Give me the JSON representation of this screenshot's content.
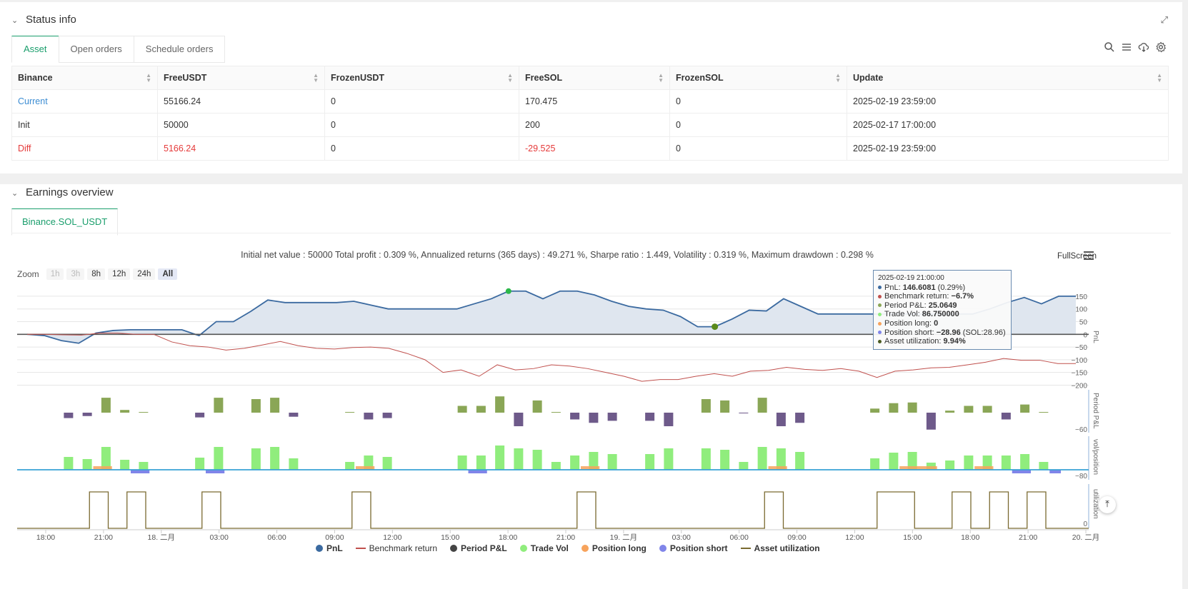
{
  "status": {
    "title": "Status info",
    "tabs": [
      "Asset",
      "Open orders",
      "Schedule orders"
    ],
    "headers": [
      "Binance",
      "FreeUSDT",
      "FrozenUSDT",
      "FreeSOL",
      "FrozenSOL",
      "Update"
    ],
    "rows": [
      [
        "Current",
        "55166.24",
        "0",
        "170.475",
        "0",
        "2025-02-19 23:59:00"
      ],
      [
        "Init",
        "50000",
        "0",
        "200",
        "0",
        "2025-02-17 17:00:00"
      ],
      [
        "Diff",
        "5166.24",
        "0",
        "-29.525",
        "0",
        "2025-02-19 23:59:00"
      ]
    ]
  },
  "earnings": {
    "title": "Earnings overview",
    "tab": "Binance.SOL_USDT",
    "summary": "Initial net value : 50000 Total profit : 0.309 %, Annualized returns (365 days) : 49.271 %, Sharpe ratio : 1.449, Volatility : 0.319 %, Maximum drawdown : 0.298 %",
    "fullscreen": "FullScreen",
    "zoom_label": "Zoom",
    "zoom_buttons": [
      "1h",
      "3h",
      "8h",
      "12h",
      "24h",
      "All"
    ]
  },
  "tooltip": {
    "time": "2025-02-19 21:00:00",
    "pnl_label": "PnL:",
    "pnl_value": "146.6081",
    "pnl_extra": "(0.29%)",
    "bench_label": "Benchmark return:",
    "bench_value": "−6.7%",
    "period_label": "Period P&L:",
    "period_value": "25.0649",
    "vol_label": "Trade Vol:",
    "vol_value": "86.750000",
    "long_label": "Position long:",
    "long_value": "0",
    "short_label": "Position short:",
    "short_value": "−28.96",
    "short_extra": "(SOL:28.96)",
    "util_label": "Asset utilization:",
    "util_value": "9.94%"
  },
  "chart_data": {
    "type": "line",
    "x_ticks": [
      "18:00",
      "21:00",
      "18. 二月",
      "03:00",
      "06:00",
      "09:00",
      "12:00",
      "15:00",
      "18:00",
      "21:00",
      "19. 二月",
      "03:00",
      "06:00",
      "09:00",
      "12:00",
      "15:00",
      "18:00",
      "21:00",
      "20. 二月"
    ],
    "pnl_axis": {
      "label": "PnL",
      "ticks": [
        "150",
        "100",
        "50",
        "0",
        "−50",
        "−100",
        "−150",
        "−200"
      ],
      "ylim": [
        -210,
        175
      ]
    },
    "period_axis": {
      "label": "Period P&L",
      "ticks": [
        "−60"
      ]
    },
    "vol_axis": {
      "label": "vol/position",
      "ticks": [
        "−80"
      ]
    },
    "util_axis": {
      "label": "utilization",
      "ticks": [
        "0"
      ]
    },
    "pnl": [
      0,
      -5,
      -25,
      -35,
      5,
      15,
      18,
      18,
      18,
      18,
      -5,
      50,
      50,
      90,
      135,
      125,
      125,
      125,
      125,
      130,
      115,
      100,
      100,
      100,
      100,
      100,
      120,
      140,
      170,
      170,
      140,
      170,
      170,
      155,
      130,
      110,
      100,
      95,
      70,
      30,
      30,
      60,
      95,
      92,
      140,
      110,
      80,
      80,
      80,
      80,
      80,
      80,
      80,
      80,
      80,
      80,
      100,
      125,
      145,
      120,
      150,
      150
    ],
    "benchmark": [
      0,
      0,
      -2,
      -3,
      5,
      5,
      0,
      0,
      -30,
      -45,
      -50,
      -62,
      -55,
      -42,
      -28,
      -45,
      -55,
      -58,
      -52,
      -50,
      -55,
      -75,
      -100,
      -150,
      -140,
      -165,
      -120,
      -140,
      -135,
      -120,
      -125,
      -135,
      -150,
      -165,
      -185,
      -178,
      -178,
      -165,
      -155,
      -165,
      -145,
      -142,
      -130,
      -138,
      -142,
      -135,
      -145,
      -170,
      -145,
      -140,
      -132,
      -130,
      -120,
      -110,
      -95,
      -102,
      -102,
      -115,
      -115
    ],
    "series": [
      {
        "name": "PnL",
        "color": "#3b6aa0"
      },
      {
        "name": "Benchmark return",
        "color": "#c0504d"
      },
      {
        "name": "Period P&L",
        "color": "#444444"
      },
      {
        "name": "Trade Vol",
        "color": "#90ed7d"
      },
      {
        "name": "Position long",
        "color": "#f7a35c"
      },
      {
        "name": "Position short",
        "color": "#8085e9"
      },
      {
        "name": "Asset utilization",
        "color": "#7a6a30"
      }
    ],
    "period_pnl": [
      {
        "x": 2.3,
        "v": -8
      },
      {
        "x": 3.3,
        "v": -5
      },
      {
        "x": 4.3,
        "v": 22
      },
      {
        "x": 5.3,
        "v": 4
      },
      {
        "x": 6.3,
        "v": 1
      },
      {
        "x": 9.3,
        "v": -7
      },
      {
        "x": 10.3,
        "v": 22
      },
      {
        "x": 12.3,
        "v": 20
      },
      {
        "x": 13.3,
        "v": 22
      },
      {
        "x": 14.3,
        "v": -6
      },
      {
        "x": 17.3,
        "v": 1
      },
      {
        "x": 18.3,
        "v": -10
      },
      {
        "x": 19.3,
        "v": -8
      },
      {
        "x": 23.3,
        "v": 10
      },
      {
        "x": 24.3,
        "v": 10
      },
      {
        "x": 25.3,
        "v": 24
      },
      {
        "x": 26.3,
        "v": -20
      },
      {
        "x": 27.3,
        "v": 18
      },
      {
        "x": 28.3,
        "v": 1
      },
      {
        "x": 29.3,
        "v": -10
      },
      {
        "x": 30.3,
        "v": -15
      },
      {
        "x": 31.3,
        "v": -12
      },
      {
        "x": 33.3,
        "v": -12
      },
      {
        "x": 34.3,
        "v": -20
      },
      {
        "x": 36.3,
        "v": 20
      },
      {
        "x": 37.3,
        "v": 18
      },
      {
        "x": 38.3,
        "v": -1
      },
      {
        "x": 39.3,
        "v": 22
      },
      {
        "x": 40.3,
        "v": -20
      },
      {
        "x": 41.3,
        "v": -15
      },
      {
        "x": 45.3,
        "v": 6
      },
      {
        "x": 46.3,
        "v": 14
      },
      {
        "x": 47.3,
        "v": 15
      },
      {
        "x": 48.3,
        "v": -25
      },
      {
        "x": 49.3,
        "v": 3
      },
      {
        "x": 50.3,
        "v": 10
      },
      {
        "x": 51.3,
        "v": 10
      },
      {
        "x": 52.3,
        "v": -10
      },
      {
        "x": 53.3,
        "v": 12
      },
      {
        "x": 54.3,
        "v": 1
      }
    ],
    "trade_vol": [
      2.3,
      3.3,
      4.3,
      5.3,
      6.3,
      9.3,
      10.3,
      12.3,
      13.3,
      14.3,
      17.3,
      18.3,
      19.3,
      23.3,
      24.3,
      25.3,
      26.3,
      27.3,
      28.3,
      29.3,
      30.3,
      31.3,
      33.3,
      34.3,
      36.3,
      37.3,
      38.3,
      39.3,
      40.3,
      41.3,
      45.3,
      46.3,
      47.3,
      48.3,
      49.3,
      50.3,
      51.3,
      52.3,
      53.3,
      54.3
    ],
    "utilization_on": [
      [
        3.4,
        4.4
      ],
      [
        5.4,
        6.4
      ],
      [
        9.4,
        10.4
      ],
      [
        17.4,
        18.4
      ],
      [
        29.4,
        30.4
      ],
      [
        39.4,
        40.4
      ],
      [
        45.4,
        47.4
      ],
      [
        49.4,
        50.4
      ],
      [
        51.4,
        52.4
      ],
      [
        53.4,
        54.4
      ]
    ]
  }
}
